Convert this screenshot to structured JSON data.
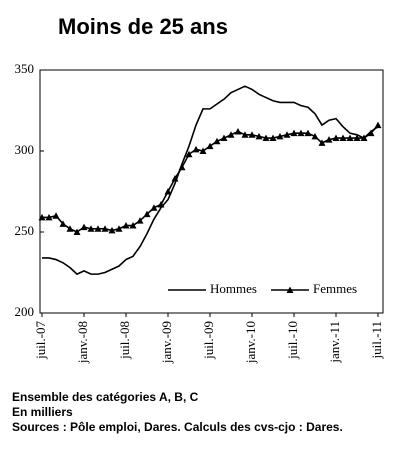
{
  "chart_data": {
    "type": "line",
    "title": "Moins de 25 ans",
    "categories": [
      "juil.-07",
      null,
      null,
      null,
      null,
      null,
      "janv.-08",
      null,
      null,
      null,
      null,
      null,
      "juil.-08",
      null,
      null,
      null,
      null,
      null,
      "janv.-09",
      null,
      null,
      null,
      null,
      null,
      "juil.-09",
      null,
      null,
      null,
      null,
      null,
      "janv.-10",
      null,
      null,
      null,
      null,
      null,
      "juil.-10",
      null,
      null,
      null,
      null,
      null,
      "janv.-11",
      null,
      null,
      null,
      null,
      null,
      "juil.-11"
    ],
    "series": [
      {
        "name": "Hommes",
        "color": "#000000",
        "marker": "none",
        "values": [
          234,
          234,
          233,
          231,
          228,
          224,
          226,
          224,
          224,
          225,
          227,
          229,
          233,
          235,
          241,
          249,
          258,
          265,
          270,
          280,
          292,
          303,
          316,
          326,
          326,
          329,
          332,
          336,
          338,
          340,
          338,
          335,
          333,
          331,
          330,
          330,
          330,
          328,
          327,
          323,
          316,
          319,
          320,
          315,
          311,
          310,
          308,
          312,
          315
        ]
      },
      {
        "name": "Femmes",
        "color": "#000000",
        "marker": "triangle",
        "values": [
          259,
          259,
          260,
          255,
          252,
          250,
          253,
          252,
          252,
          252,
          251,
          252,
          254,
          254,
          257,
          261,
          265,
          267,
          275,
          283,
          290,
          298,
          301,
          300,
          303,
          306,
          308,
          310,
          312,
          310,
          310,
          309,
          308,
          308,
          309,
          310,
          311,
          311,
          311,
          309,
          305,
          307,
          308,
          308,
          308,
          308,
          308,
          311,
          316
        ]
      }
    ],
    "ylim": [
      200,
      350
    ],
    "yticks": [
      200,
      250,
      300,
      350
    ],
    "grid": false,
    "legend": "bottom-right",
    "notes": [
      "Ensemble des catégories A, B, C",
      "En milliers",
      "Sources : Pôle emploi, Dares. Calculs des cvs-cjo : Dares."
    ]
  }
}
